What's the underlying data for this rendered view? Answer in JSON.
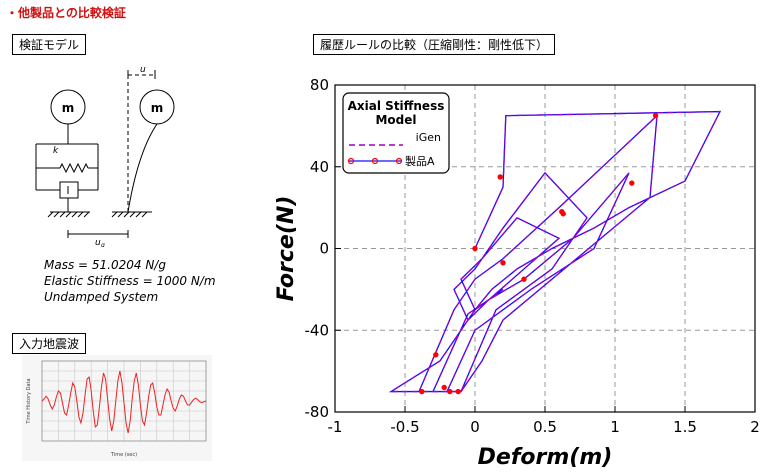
{
  "page": {
    "title": "・他製品との比較検証",
    "model_label": "検証モデル",
    "chart_label": "履歴ルールの比較（圧縮剛性：剛性低下）",
    "wave_label": "入力地震波"
  },
  "model": {
    "mass_symbol": "m",
    "spring_symbol": "k",
    "u_symbol": "u",
    "ug_symbol": "u",
    "ug_subscript": "g",
    "params": [
      "Mass = 51.0204 N/g",
      "Elastic Stiffness = 1000 N/m",
      "Undamped System"
    ]
  },
  "colors": {
    "title_red": "#d01010",
    "igen": "#9900cc",
    "product": "#1010ff",
    "marker": "#ff0000",
    "wave": "#ee2222"
  },
  "chart_data": {
    "type": "line",
    "title": "",
    "xlabel": "Deform(m)",
    "ylabel": "Force(N)",
    "xlim": [
      -1,
      2
    ],
    "ylim": [
      -80,
      80
    ],
    "xticks": [
      -1,
      -0.5,
      0,
      0.5,
      1,
      1.5,
      2
    ],
    "yticks": [
      -80,
      -40,
      0,
      40,
      80
    ],
    "xtick_labels": [
      "-1",
      "-0.5",
      "0",
      "0.5",
      "1",
      "1.5",
      "2"
    ],
    "ytick_labels": [
      "-80",
      "-40",
      "0",
      "40",
      "80"
    ],
    "grid": true,
    "legend": {
      "title": "Axial Stiffness Model",
      "title_lines": [
        "Axial Stiffness",
        "Model"
      ],
      "placement": "top-left"
    },
    "series": [
      {
        "name": "iGen",
        "style": "dashed",
        "x": [
          0,
          0.2,
          0.22,
          1.75,
          1.5,
          1.1,
          0.85,
          0.55,
          0.3,
          0.12,
          0,
          -0.25,
          -0.6,
          -0.3,
          -0.1,
          0.05,
          0.2,
          0.55,
          0.9,
          1.25,
          1.3,
          0.6,
          0.2,
          0,
          -0.15,
          -0.4,
          -0.2,
          0,
          0.4,
          0.85,
          1.1,
          0.7,
          0.35,
          0.1,
          -0.05,
          -0.3,
          -0.1,
          0.15,
          0.55,
          0.8,
          0.5,
          0.2,
          0,
          -0.15,
          -0.05,
          0.1,
          0.35,
          0.6,
          0.3,
          0.05,
          -0.1,
          0,
          0.2
        ],
        "y": [
          0,
          30,
          65,
          67,
          33,
          20,
          10,
          0,
          -10,
          -20,
          -30,
          -55,
          -70,
          -70,
          -70,
          -55,
          -35,
          -15,
          5,
          25,
          65,
          20,
          -5,
          -15,
          -30,
          -70,
          -70,
          -40,
          -20,
          0,
          37,
          5,
          -15,
          -25,
          -32,
          -70,
          -70,
          -30,
          -10,
          15,
          37,
          10,
          -10,
          -20,
          -35,
          -25,
          -10,
          5,
          15,
          -5,
          -15,
          -30,
          -20
        ]
      },
      {
        "name": "製品A",
        "style": "solid-marker",
        "x": [
          0,
          0.2,
          0.22,
          1.75,
          1.5,
          1.1,
          0.85,
          0.55,
          0.3,
          0.12,
          0,
          -0.25,
          -0.6,
          -0.3,
          -0.1,
          0.05,
          0.2,
          0.55,
          0.9,
          1.25,
          1.3,
          0.6,
          0.2,
          0,
          -0.15,
          -0.4,
          -0.2,
          0,
          0.4,
          0.85,
          1.1,
          0.7,
          0.35,
          0.1,
          -0.05,
          -0.3,
          -0.1,
          0.15,
          0.55,
          0.8,
          0.5,
          0.2,
          0,
          -0.15,
          -0.05,
          0.1,
          0.35,
          0.6,
          0.3,
          0.05,
          -0.1,
          0,
          0.2
        ],
        "y": [
          0,
          30,
          65,
          67,
          33,
          20,
          10,
          0,
          -10,
          -20,
          -30,
          -55,
          -70,
          -70,
          -70,
          -55,
          -35,
          -15,
          5,
          25,
          65,
          20,
          -5,
          -15,
          -30,
          -70,
          -70,
          -40,
          -20,
          0,
          37,
          5,
          -15,
          -25,
          -32,
          -70,
          -70,
          -30,
          -10,
          15,
          37,
          10,
          -10,
          -20,
          -35,
          -25,
          -10,
          5,
          15,
          -5,
          -15,
          -30,
          -20
        ]
      }
    ],
    "markers": {
      "x": [
        0.18,
        0.0,
        0.2,
        1.29,
        0.62,
        0.63,
        1.12,
        0.35,
        -0.28,
        -0.12,
        -0.18,
        -0.22,
        -0.38
      ],
      "y": [
        35,
        0,
        -7,
        65,
        18,
        17,
        32,
        -15,
        -52,
        -70,
        -70,
        -68,
        -70
      ]
    }
  },
  "wave": {
    "type": "line",
    "xlabel": "Time (sec)",
    "ylabel": "Time History Data",
    "x": [
      0,
      1,
      2,
      3,
      4,
      5,
      6,
      7,
      8,
      9,
      10,
      11,
      12,
      13,
      14,
      15,
      16,
      17,
      18,
      19,
      20,
      21,
      22,
      23,
      24,
      25,
      26,
      27,
      28,
      29,
      30,
      31,
      32,
      33,
      34,
      35,
      36,
      37,
      38,
      39,
      40,
      41,
      42,
      43,
      44,
      45,
      46,
      47,
      48,
      49,
      50,
      51,
      52,
      53,
      54,
      55,
      56,
      57,
      58,
      59,
      60,
      61,
      62,
      63,
      64,
      65,
      66,
      67,
      68,
      69,
      70,
      71,
      72,
      73,
      74,
      75,
      76,
      77,
      78,
      79,
      80
    ],
    "y": [
      0,
      0.05,
      0.12,
      0.05,
      -0.1,
      -0.2,
      -0.1,
      0.1,
      0.25,
      0.2,
      -0.05,
      -0.3,
      -0.35,
      -0.1,
      0.2,
      0.45,
      0.35,
      0.0,
      -0.4,
      -0.55,
      -0.3,
      0.15,
      0.55,
      0.6,
      0.25,
      -0.25,
      -0.65,
      -0.6,
      -0.15,
      0.35,
      0.7,
      0.55,
      0.05,
      -0.45,
      -0.75,
      -0.5,
      0.0,
      0.5,
      0.75,
      0.45,
      -0.05,
      -0.55,
      -0.8,
      -0.5,
      0.05,
      0.5,
      0.7,
      0.4,
      -0.1,
      -0.5,
      -0.6,
      -0.3,
      0.1,
      0.4,
      0.45,
      0.2,
      -0.15,
      -0.35,
      -0.35,
      -0.1,
      0.15,
      0.3,
      0.22,
      0.0,
      -0.18,
      -0.25,
      -0.12,
      0.05,
      0.15,
      0.12,
      0.0,
      -0.1,
      -0.1,
      -0.03,
      0.04,
      0.07,
      0.03,
      -0.02,
      -0.04,
      -0.02,
      0
    ]
  }
}
